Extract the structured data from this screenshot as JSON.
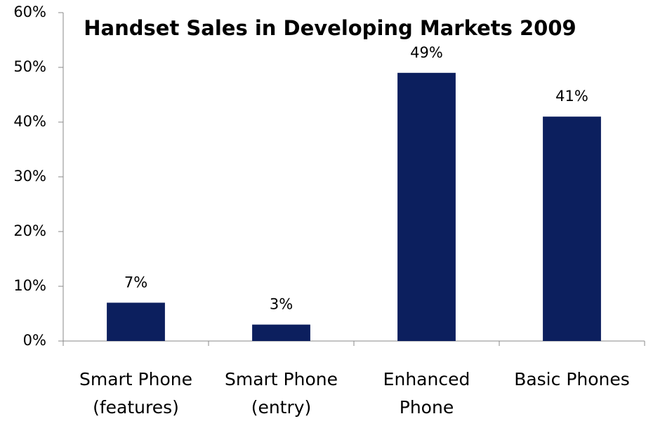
{
  "chart_data": {
    "type": "bar",
    "title": "Handset Sales in Developing Markets 2009",
    "categories": [
      "Smart Phone\n(features)",
      "Smart Phone\n(entry)",
      "Enhanced\nPhone",
      "Basic Phones"
    ],
    "values": [
      7,
      3,
      49,
      41
    ],
    "value_labels": [
      "7%",
      "3%",
      "49%",
      "41%"
    ],
    "color": "#0c1f5e",
    "ylim": [
      0,
      60
    ],
    "yticks": [
      {
        "value": 0,
        "label": "0%"
      },
      {
        "value": 10,
        "label": "10%"
      },
      {
        "value": 20,
        "label": "20%"
      },
      {
        "value": 30,
        "label": "30%"
      },
      {
        "value": 40,
        "label": "40%"
      },
      {
        "value": 50,
        "label": "50%"
      },
      {
        "value": 60,
        "label": "60%"
      }
    ],
    "grid": false
  }
}
